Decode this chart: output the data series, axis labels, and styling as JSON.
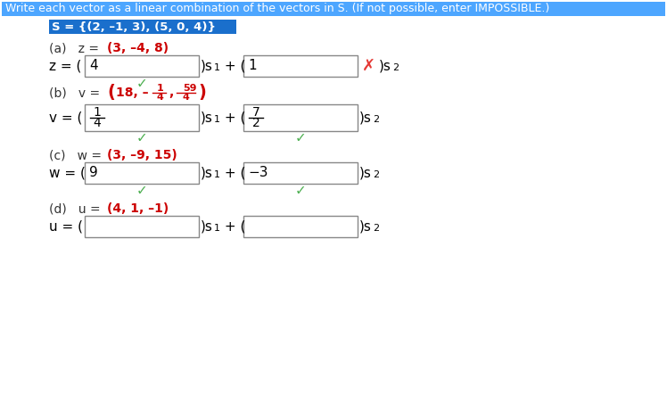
{
  "title_text": "Write each vector as a linear combination of the vectors in S. (If not possible, enter IMPOSSIBLE.)",
  "title_bg": "#4da6ff",
  "title_fg": "#ffffff",
  "set_text": "S = {(2, –1, 3), (5, 0, 4)}",
  "set_bg": "#1a6fcc",
  "set_fg": "#ffffff",
  "bg_color": "#ffffff",
  "box_border": "#888888",
  "check_green": "#4caf50",
  "cross_red": "#e53935",
  "label_color": "#333333",
  "vec_color": "#cc0000",
  "frac_color": "#cc0000",
  "part_a_box1": "4",
  "part_a_box2": "1",
  "part_c_box1": "9",
  "part_c_box2": "−3"
}
